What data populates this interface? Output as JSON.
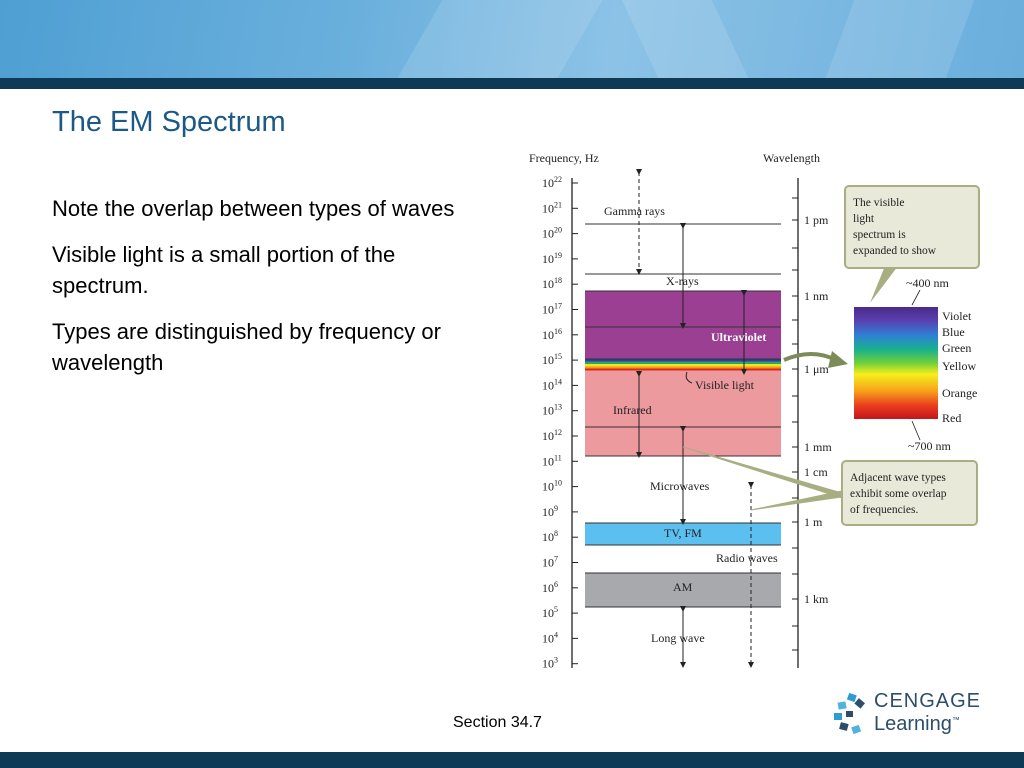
{
  "slide": {
    "title": "The EM Spectrum",
    "bullets": [
      "Note the overlap between types of waves",
      "Visible light is a small portion of the spectrum.",
      "Types are distinguished by frequency or wavelength"
    ],
    "footer": "Section  34.7",
    "logo": {
      "line1": "CENGAGE",
      "line2": "Learning",
      "tm": "™"
    }
  },
  "diagram": {
    "freq_axis_label": "Frequency, Hz",
    "wavelength_axis_label": "Wavelength",
    "freq_ticks": [
      {
        "base": "10",
        "exp": "22"
      },
      {
        "base": "10",
        "exp": "21"
      },
      {
        "base": "10",
        "exp": "20"
      },
      {
        "base": "10",
        "exp": "19"
      },
      {
        "base": "10",
        "exp": "18"
      },
      {
        "base": "10",
        "exp": "17"
      },
      {
        "base": "10",
        "exp": "16"
      },
      {
        "base": "10",
        "exp": "15"
      },
      {
        "base": "10",
        "exp": "14"
      },
      {
        "base": "10",
        "exp": "13"
      },
      {
        "base": "10",
        "exp": "12"
      },
      {
        "base": "10",
        "exp": "11"
      },
      {
        "base": "10",
        "exp": "10"
      },
      {
        "base": "10",
        "exp": "9"
      },
      {
        "base": "10",
        "exp": "8"
      },
      {
        "base": "10",
        "exp": "7"
      },
      {
        "base": "10",
        "exp": "6"
      },
      {
        "base": "10",
        "exp": "5"
      },
      {
        "base": "10",
        "exp": "4"
      },
      {
        "base": "10",
        "exp": "3"
      }
    ],
    "wavelength_labels": {
      "pm": "1 pm",
      "nm": "1 nm",
      "um": "1 μm",
      "mm": "1 mm",
      "cm": "1 cm",
      "m": "1 m",
      "km": "1 km"
    },
    "bands": {
      "gamma": "Gamma rays",
      "xrays": "X-rays",
      "uv": "Ultraviolet",
      "visible": "Visible light",
      "ir": "Infrared",
      "micro": "Microwaves",
      "tvfm": "TV, FM",
      "radio": "Radio waves",
      "am": "AM",
      "long": "Long wave"
    },
    "visible_colors": [
      "Violet",
      "Blue",
      "Green",
      "Yellow",
      "Orange",
      "Red"
    ],
    "visible_bounds": {
      "top": "~400 nm",
      "bottom": "~700 nm"
    },
    "callouts": {
      "visible": "The visible light spectrum is expanded to show details of the colors.",
      "overlap": "Adjacent wave types exhibit some overlap of frequencies."
    },
    "colors": {
      "uv": "#9b3f93",
      "ir": "#ec9a9e",
      "tvfm": "#5bbfef",
      "am": "#a7a9ac",
      "callout_bg": "#e8e9d9",
      "callout_border": "#a9ae82",
      "arrow": "#7c8b57"
    }
  }
}
